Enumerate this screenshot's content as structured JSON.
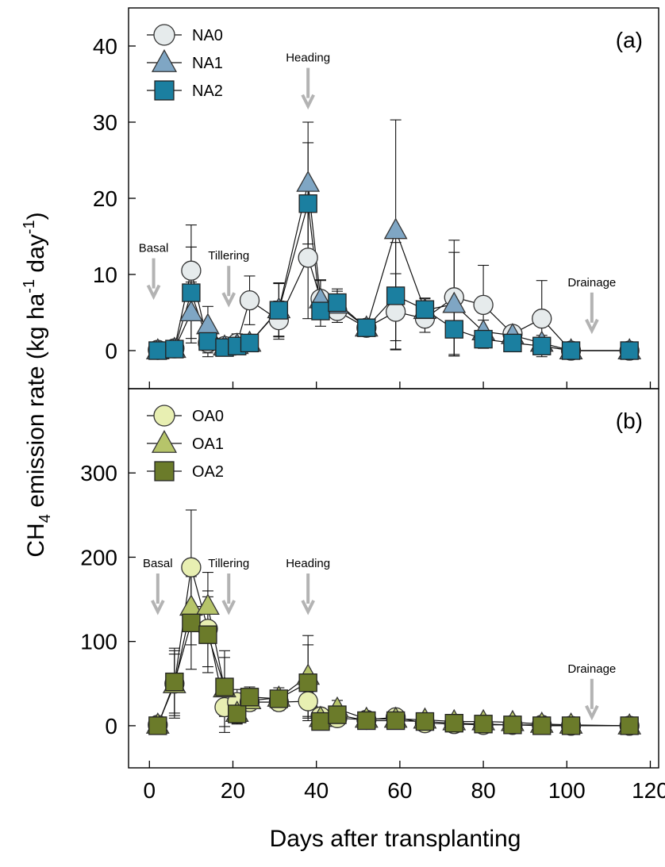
{
  "figure": {
    "ylabel_prefix": "CH",
    "ylabel_sub": "4",
    "ylabel_mid": " emission rate (kg ha",
    "ylabel_sup1": "-1",
    "ylabel_mid2": " day",
    "ylabel_sup2": "-1",
    "ylabel_end": ")",
    "xlabel": "Days after transplanting"
  },
  "chart_data": [
    {
      "type": "line",
      "panel_label": "(a)",
      "xlim": [
        -5,
        122
      ],
      "ylim": [
        -5,
        45
      ],
      "xticks": [
        0,
        20,
        40,
        60,
        80,
        100,
        120
      ],
      "yticks": [
        0,
        10,
        20,
        30,
        40
      ],
      "legend_position": "top-left",
      "grid": false,
      "series": [
        {
          "name": "NA0",
          "marker": "circle",
          "color": "#e6ebec",
          "x": [
            2,
            6,
            10,
            14,
            18,
            21,
            24,
            31,
            38,
            41,
            45,
            52,
            59,
            66,
            73,
            80,
            87,
            94,
            101,
            115
          ],
          "y": [
            0.1,
            0.3,
            10.5,
            1.0,
            0.6,
            1.0,
            6.6,
            4.0,
            12.2,
            6.8,
            5.2,
            3.0,
            5.1,
            4.2,
            7.0,
            6.0,
            2.2,
            4.2,
            0.0,
            0.0
          ],
          "err": [
            0.3,
            0.4,
            6.0,
            1.8,
            1.0,
            1.2,
            3.2,
            2.5,
            8.0,
            2.5,
            1.5,
            0.8,
            5.0,
            1.8,
            7.5,
            5.2,
            0.6,
            5.0,
            0.2,
            0.2
          ]
        },
        {
          "name": "NA1",
          "marker": "triangle",
          "color": "#7fa6c4",
          "x": [
            2,
            6,
            10,
            14,
            18,
            21,
            24,
            31,
            38,
            41,
            45,
            52,
            59,
            66,
            73,
            80,
            87,
            94,
            101,
            115
          ],
          "y": [
            0.0,
            0.2,
            5.0,
            3.3,
            0.5,
            0.7,
            1.0,
            5.4,
            22.0,
            6.7,
            6.0,
            3.0,
            15.8,
            5.3,
            6.1,
            2.5,
            2.0,
            1.0,
            0.0,
            0.0
          ],
          "err": [
            0.2,
            0.3,
            4.0,
            2.5,
            0.8,
            0.8,
            1.0,
            3.5,
            8.0,
            2.5,
            1.8,
            0.8,
            14.5,
            1.5,
            6.8,
            1.5,
            0.6,
            1.0,
            0.2,
            0.2
          ]
        },
        {
          "name": "NA2",
          "marker": "square",
          "color": "#1b7fa0",
          "x": [
            2,
            6,
            10,
            14,
            18,
            21,
            24,
            31,
            38,
            41,
            45,
            52,
            59,
            66,
            73,
            80,
            87,
            94,
            101,
            115
          ],
          "y": [
            0.0,
            0.2,
            7.6,
            1.2,
            0.4,
            0.6,
            1.0,
            5.3,
            19.3,
            5.2,
            6.3,
            3.0,
            7.2,
            5.4,
            2.8,
            1.5,
            1.0,
            0.6,
            0.0,
            0.0
          ],
          "err": [
            0.2,
            0.3,
            6.0,
            1.5,
            0.8,
            0.8,
            1.0,
            3.5,
            8.0,
            2.0,
            1.8,
            0.8,
            7.0,
            1.5,
            3.5,
            1.2,
            0.5,
            0.8,
            0.2,
            0.2
          ]
        }
      ],
      "annotations": [
        {
          "text": "Basal",
          "x": 1,
          "y": 11.5,
          "arrow": true
        },
        {
          "text": "Tillering",
          "x": 19,
          "y": 10.5,
          "arrow": true
        },
        {
          "text": "Heading",
          "x": 38,
          "y": 36.5,
          "arrow": true
        },
        {
          "text": "Drainage",
          "x": 106,
          "y": 7.0,
          "arrow": true
        }
      ]
    },
    {
      "type": "line",
      "panel_label": "(b)",
      "xlim": [
        -5,
        122
      ],
      "ylim": [
        -50,
        400
      ],
      "xticks": [
        0,
        20,
        40,
        60,
        80,
        100,
        120
      ],
      "yticks": [
        0,
        100,
        200,
        300
      ],
      "legend_position": "top-left",
      "grid": false,
      "series": [
        {
          "name": "OA0",
          "marker": "circle",
          "color": "#e8efb2",
          "x": [
            2,
            6,
            10,
            14,
            18,
            21,
            24,
            31,
            38,
            41,
            45,
            52,
            59,
            66,
            73,
            80,
            87,
            94,
            101,
            115
          ],
          "y": [
            1,
            50,
            188,
            115,
            22,
            28,
            28,
            28,
            29,
            11,
            9,
            7,
            10,
            3,
            2,
            1,
            1,
            1,
            0,
            0
          ],
          "err": [
            3,
            35,
            68,
            45,
            30,
            15,
            10,
            10,
            20,
            8,
            6,
            4,
            8,
            3,
            2,
            2,
            2,
            2,
            1,
            1
          ]
        },
        {
          "name": "OA1",
          "marker": "triangle",
          "color": "#b6c46a",
          "x": [
            2,
            6,
            10,
            14,
            18,
            21,
            24,
            31,
            38,
            41,
            45,
            52,
            59,
            66,
            73,
            80,
            87,
            94,
            101,
            115
          ],
          "y": [
            1,
            49,
            141,
            142,
            44,
            15,
            30,
            33,
            59,
            9,
            20,
            8,
            8,
            7,
            5,
            5,
            4,
            2,
            1,
            0
          ],
          "err": [
            3,
            40,
            45,
            40,
            45,
            12,
            12,
            12,
            48,
            8,
            10,
            5,
            6,
            5,
            4,
            4,
            3,
            2,
            1,
            1
          ]
        },
        {
          "name": "OA2",
          "marker": "square",
          "color": "#6b7b2a",
          "x": [
            2,
            6,
            10,
            14,
            18,
            21,
            24,
            31,
            38,
            41,
            45,
            52,
            59,
            66,
            73,
            80,
            87,
            94,
            101,
            115
          ],
          "y": [
            0,
            52,
            122,
            108,
            46,
            14,
            34,
            32,
            51,
            5,
            13,
            6,
            6,
            5,
            3,
            2,
            1,
            0,
            0,
            0
          ],
          "err": [
            3,
            40,
            55,
            45,
            35,
            12,
            12,
            10,
            45,
            6,
            8,
            4,
            5,
            4,
            3,
            2,
            2,
            1,
            1,
            1
          ]
        }
      ],
      "annotations": [
        {
          "text": "Basal",
          "x": 2,
          "y": 175,
          "arrow": true
        },
        {
          "text": "Tillering",
          "x": 19,
          "y": 175,
          "arrow": true
        },
        {
          "text": "Heading",
          "x": 38,
          "y": 175,
          "arrow": true
        },
        {
          "text": "Drainage",
          "x": 106,
          "y": 50,
          "arrow": true
        }
      ]
    }
  ]
}
